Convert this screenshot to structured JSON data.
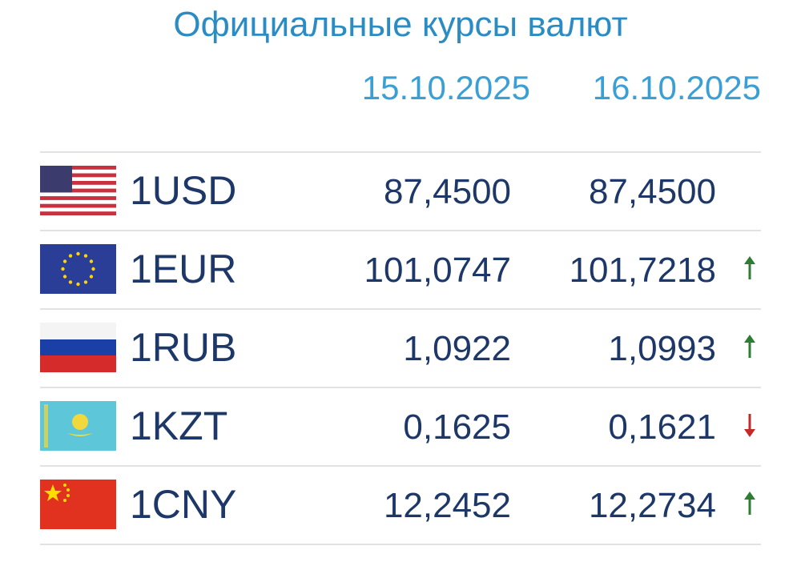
{
  "header": {
    "title": "Официальные курсы валют",
    "dates": [
      "15.10.2025",
      "16.10.2025"
    ]
  },
  "table": {
    "rows": [
      {
        "code": "1USD",
        "values": [
          "87,4500",
          "87,4500"
        ]
      },
      {
        "code": "1EUR",
        "values": [
          "101,0747",
          "101,7218"
        ],
        "trend": "up"
      },
      {
        "code": "1RUB",
        "values": [
          "1,0922",
          "1,0993"
        ],
        "trend": "up"
      },
      {
        "code": "1KZT",
        "values": [
          "0,1625",
          "0,1621"
        ],
        "trend": "down"
      },
      {
        "code": "1CNY",
        "values": [
          "12,2452",
          "12,2734"
        ],
        "trend": "up"
      }
    ]
  }
}
